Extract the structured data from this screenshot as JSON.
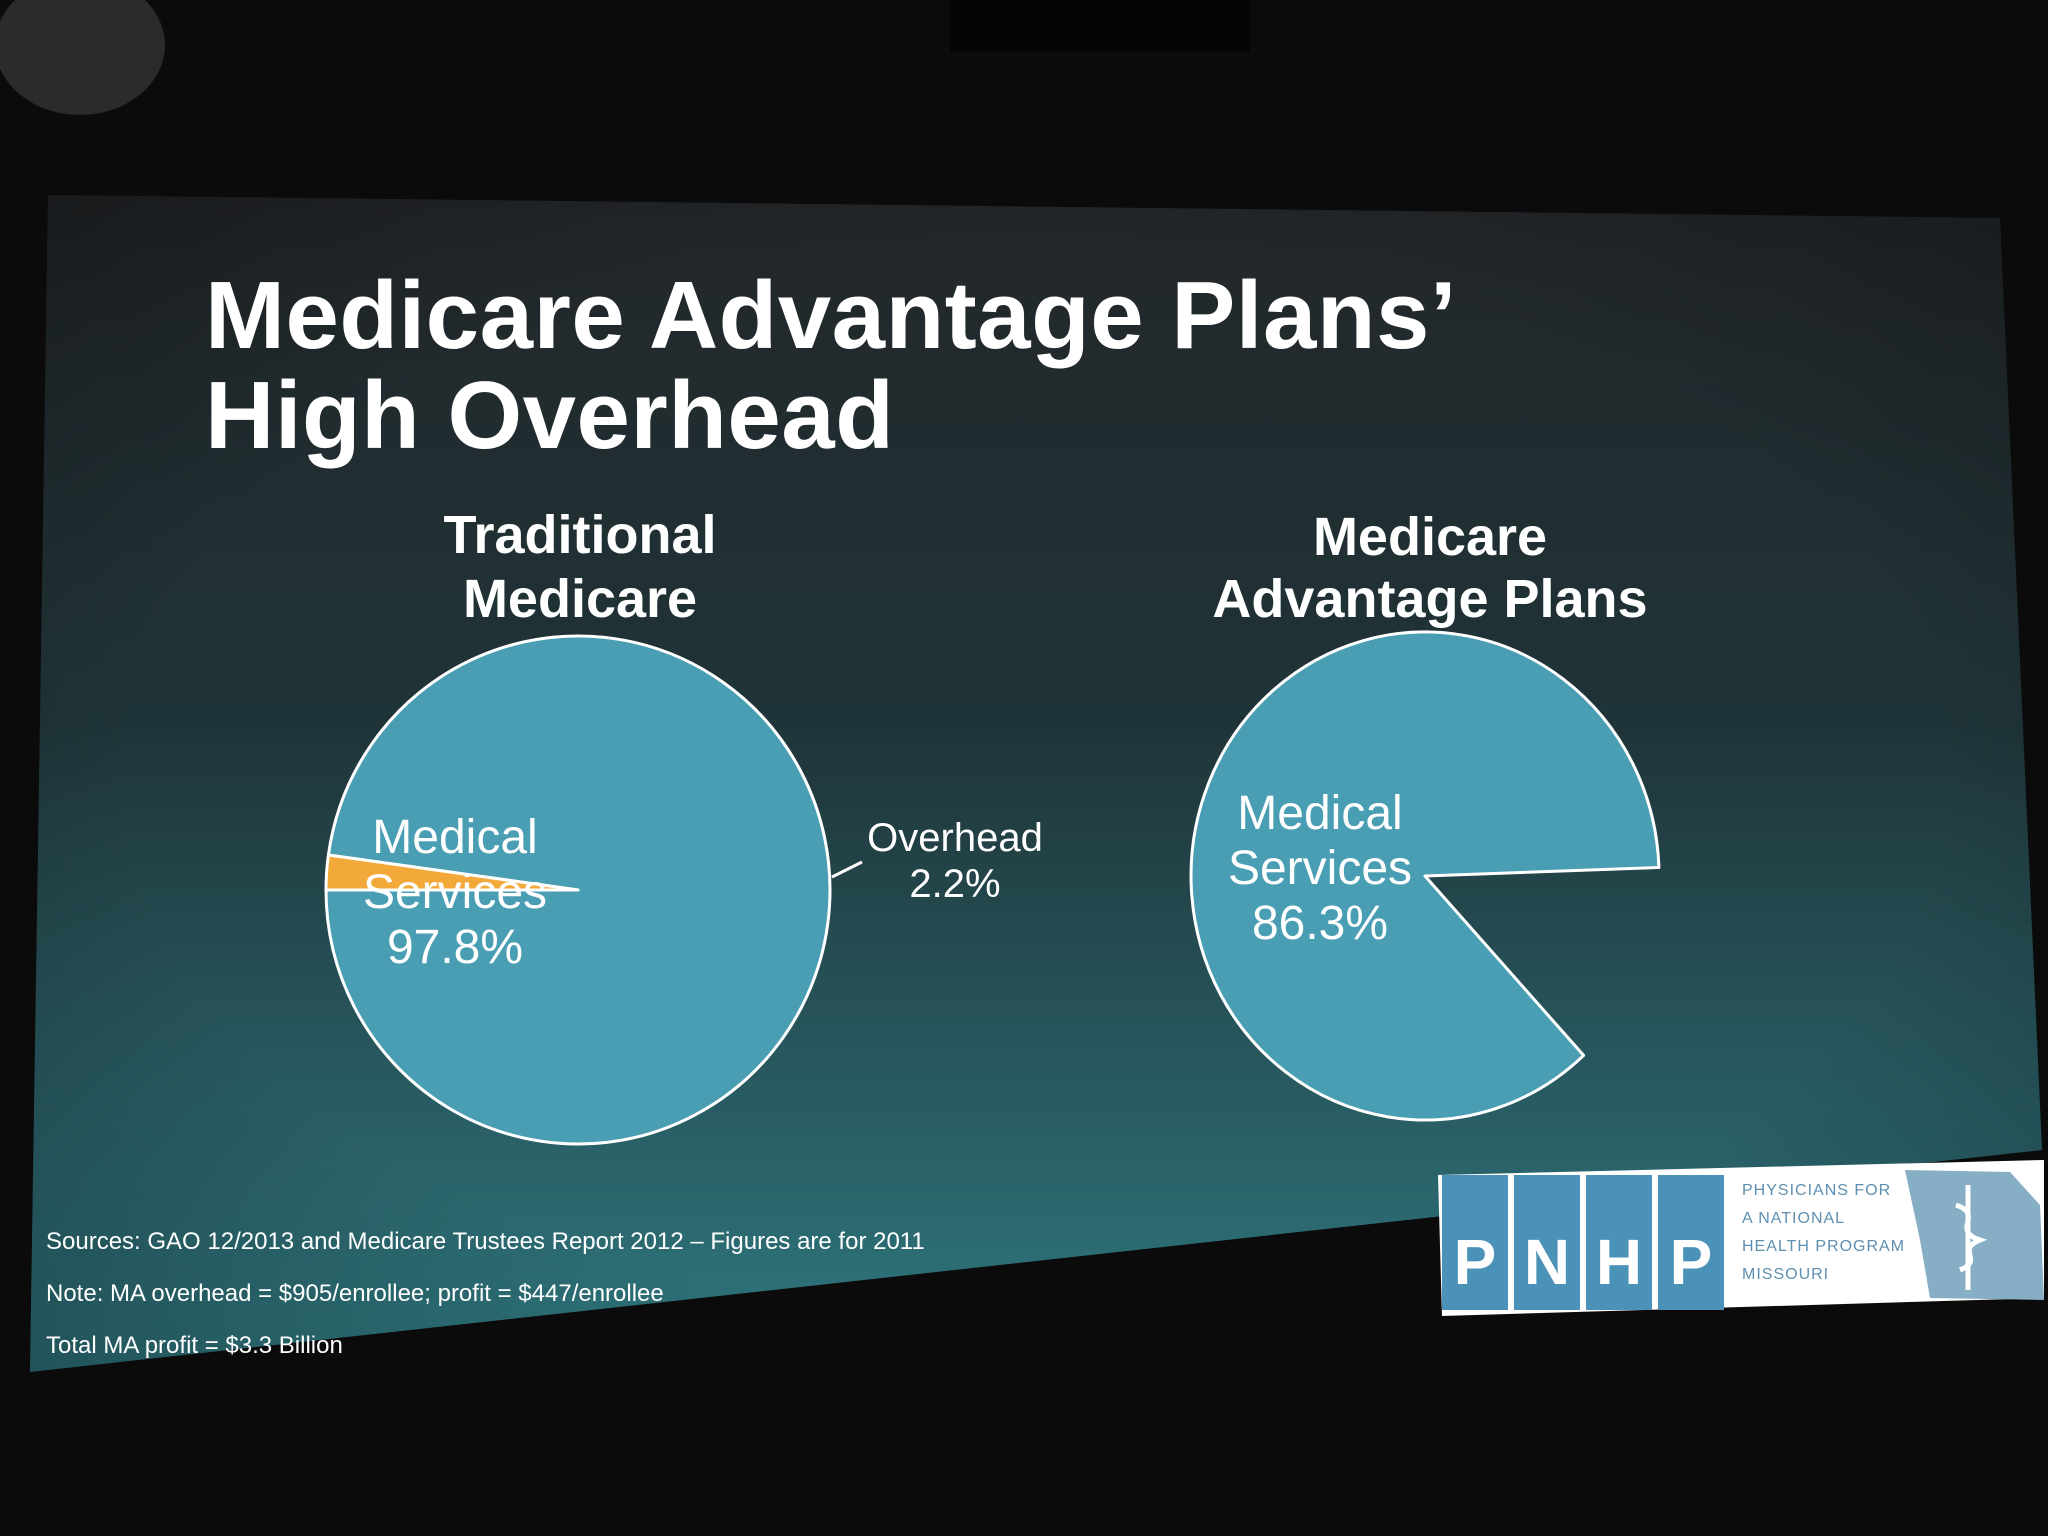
{
  "slide": {
    "title_line1": "Medicare Advantage Plans’",
    "title_line2": "High Overhead",
    "sources": "Sources: GAO 12/2013 and Medicare Trustees Report 2012 – Figures are for 2011",
    "note": "Note: MA overhead = $905/enrollee; profit = $447/enrollee",
    "total": "Total MA profit = $3.3 Billion"
  },
  "colors": {
    "slice_medical": "#4a9eb3",
    "slice_overhead": "#f3a93a",
    "slice_stroke": "#ffffff",
    "slide_top": "#232629",
    "slide_bottom": "#2f7880"
  },
  "chart_data": [
    {
      "type": "pie",
      "title_line1": "Traditional",
      "title_line2": "Medicare",
      "slices": [
        {
          "label": "Medical",
          "label2": "Services",
          "value": 97.8,
          "value_text": "97.8%",
          "shown": true
        },
        {
          "label": "Overhead",
          "value": 2.2,
          "value_text": "2.2%",
          "shown": true
        }
      ]
    },
    {
      "type": "pie",
      "title_line1": "Medicare",
      "title_line2": "Advantage Plans",
      "slices": [
        {
          "label": "Medical",
          "label2": "Services",
          "value": 86.3,
          "value_text": "86.3%",
          "shown": true
        },
        {
          "label": "",
          "value": 13.7,
          "value_text": "",
          "shown": false
        }
      ]
    }
  ],
  "logo": {
    "letters": [
      "P",
      "N",
      "H",
      "P"
    ],
    "line1": "PHYSICIANS FOR",
    "line2": "A NATIONAL",
    "line3": "HEALTH PROGRAM",
    "line4": "MISSOURI",
    "icon": "caduceus-on-missouri-map-icon"
  }
}
